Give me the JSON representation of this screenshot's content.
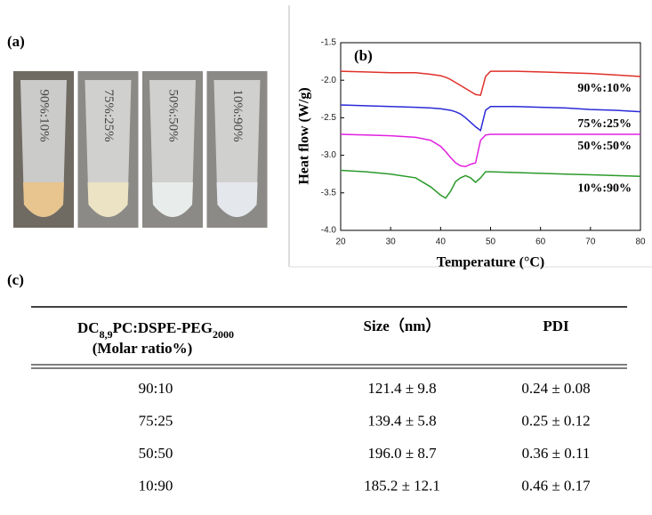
{
  "panels": {
    "a": {
      "label": "(a)",
      "tubes": [
        "90%:10%",
        "75%:25%",
        "50%:50%",
        "10%:90%"
      ]
    },
    "c": {
      "label": "(c)"
    }
  },
  "chart_data": {
    "type": "line",
    "annotation": "(b)",
    "xlabel": "Temperature (°C)",
    "ylabel": "Heat flow (W/g)",
    "x": [
      20,
      25,
      30,
      35,
      38,
      40,
      41,
      42,
      43,
      44,
      45,
      46,
      47,
      48,
      49,
      50,
      55,
      60,
      65,
      70,
      75,
      80
    ],
    "series": [
      {
        "name": "90%:10%",
        "color": "#e0302a",
        "values": [
          -1.88,
          -1.89,
          -1.9,
          -1.9,
          -1.92,
          -1.94,
          -1.96,
          -1.99,
          -2.03,
          -2.07,
          -2.11,
          -2.15,
          -2.19,
          -2.2,
          -1.95,
          -1.88,
          -1.88,
          -1.89,
          -1.9,
          -1.91,
          -1.93,
          -1.95
        ]
      },
      {
        "name": "75%:25%",
        "color": "#2a2ad8",
        "values": [
          -2.33,
          -2.34,
          -2.35,
          -2.36,
          -2.37,
          -2.38,
          -2.39,
          -2.4,
          -2.42,
          -2.45,
          -2.5,
          -2.56,
          -2.62,
          -2.67,
          -2.4,
          -2.35,
          -2.35,
          -2.36,
          -2.37,
          -2.39,
          -2.4,
          -2.42
        ]
      },
      {
        "name": "50%:50%",
        "color": "#e020e0",
        "values": [
          -2.72,
          -2.73,
          -2.74,
          -2.76,
          -2.8,
          -2.88,
          -2.95,
          -3.03,
          -3.1,
          -3.14,
          -3.15,
          -3.12,
          -3.1,
          -2.8,
          -2.73,
          -2.72,
          -2.72,
          -2.72,
          -2.72,
          -2.72,
          -2.72,
          -2.72
        ]
      },
      {
        "name": "10%:90%",
        "color": "#2a9a2a",
        "values": [
          -3.2,
          -3.22,
          -3.25,
          -3.3,
          -3.42,
          -3.53,
          -3.57,
          -3.48,
          -3.35,
          -3.3,
          -3.27,
          -3.3,
          -3.36,
          -3.3,
          -3.22,
          -3.22,
          -3.23,
          -3.24,
          -3.25,
          -3.26,
          -3.27,
          -3.28
        ]
      }
    ],
    "xlim": [
      20,
      80
    ],
    "xticks": [
      20,
      30,
      40,
      50,
      60,
      70,
      80
    ],
    "ylim": [
      -4,
      -1.5
    ],
    "yticks": [
      {
        "value": -4,
        "label": "-4.0"
      },
      -3.5,
      {
        "value": -3,
        "label": "-3.0"
      },
      -2.5,
      {
        "value": -2,
        "label": "-2.0"
      },
      -1.5
    ]
  },
  "table": {
    "header": {
      "ratio": {
        "parts": [
          "DC",
          "8,9",
          "PC:DSPE-PEG",
          "2000"
        ],
        "line2": "(Molar ratio%)"
      },
      "size": "Size（nm）",
      "pdi": "PDI"
    },
    "rows": [
      [
        "90:10",
        "121.4 ± 9.8",
        "0.24 ± 0.08"
      ],
      [
        "75:25",
        "139.4 ± 5.8",
        "0.25 ± 0.12"
      ],
      [
        "50:50",
        "196.0 ± 8.7",
        "0.36 ± 0.11"
      ],
      [
        "10:90",
        "185.2 ± 12.1",
        "0.46 ± 0.17"
      ]
    ]
  }
}
